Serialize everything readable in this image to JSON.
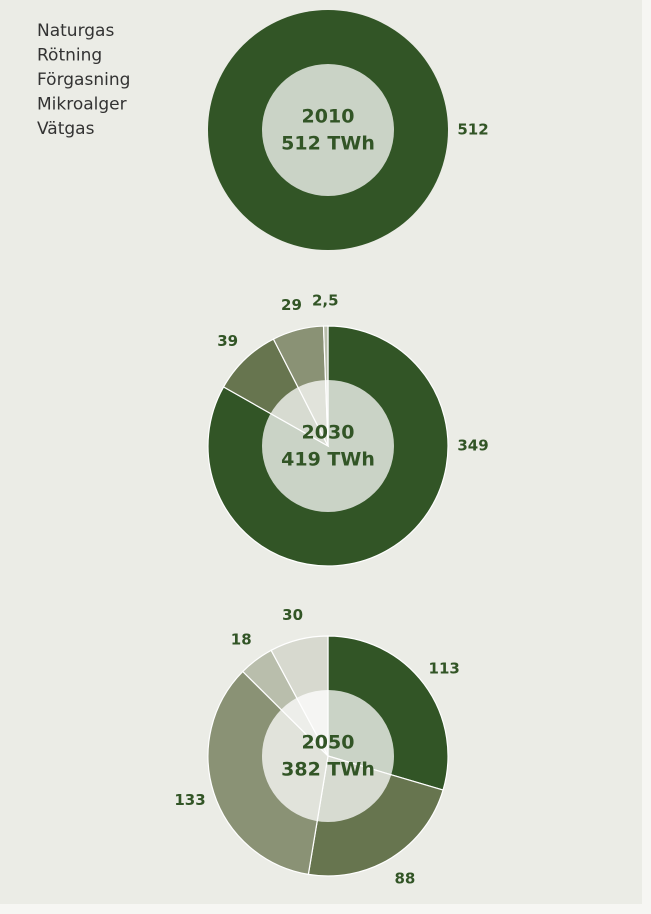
{
  "legend": {
    "names": [
      "Naturgas",
      "Rötning",
      "Förgasning",
      "Mikroalger",
      "Vätgas"
    ],
    "colors": [
      "#325526",
      "#67754f",
      "#8a9275",
      "#b9beac",
      "#d7d9cf"
    ]
  },
  "chart_data": [
    {
      "type": "pie",
      "title": "2010",
      "subtitle": "512 TWh",
      "values": [
        512
      ]
    },
    {
      "type": "pie",
      "title": "2030",
      "subtitle": "419 TWh",
      "values": [
        349,
        39,
        29,
        2.5
      ],
      "value_labels": [
        "349",
        "39",
        "29",
        "2,5"
      ]
    },
    {
      "type": "pie",
      "title": "2050",
      "subtitle": "382 TWh",
      "values": [
        113,
        88,
        133,
        18,
        30
      ]
    }
  ]
}
